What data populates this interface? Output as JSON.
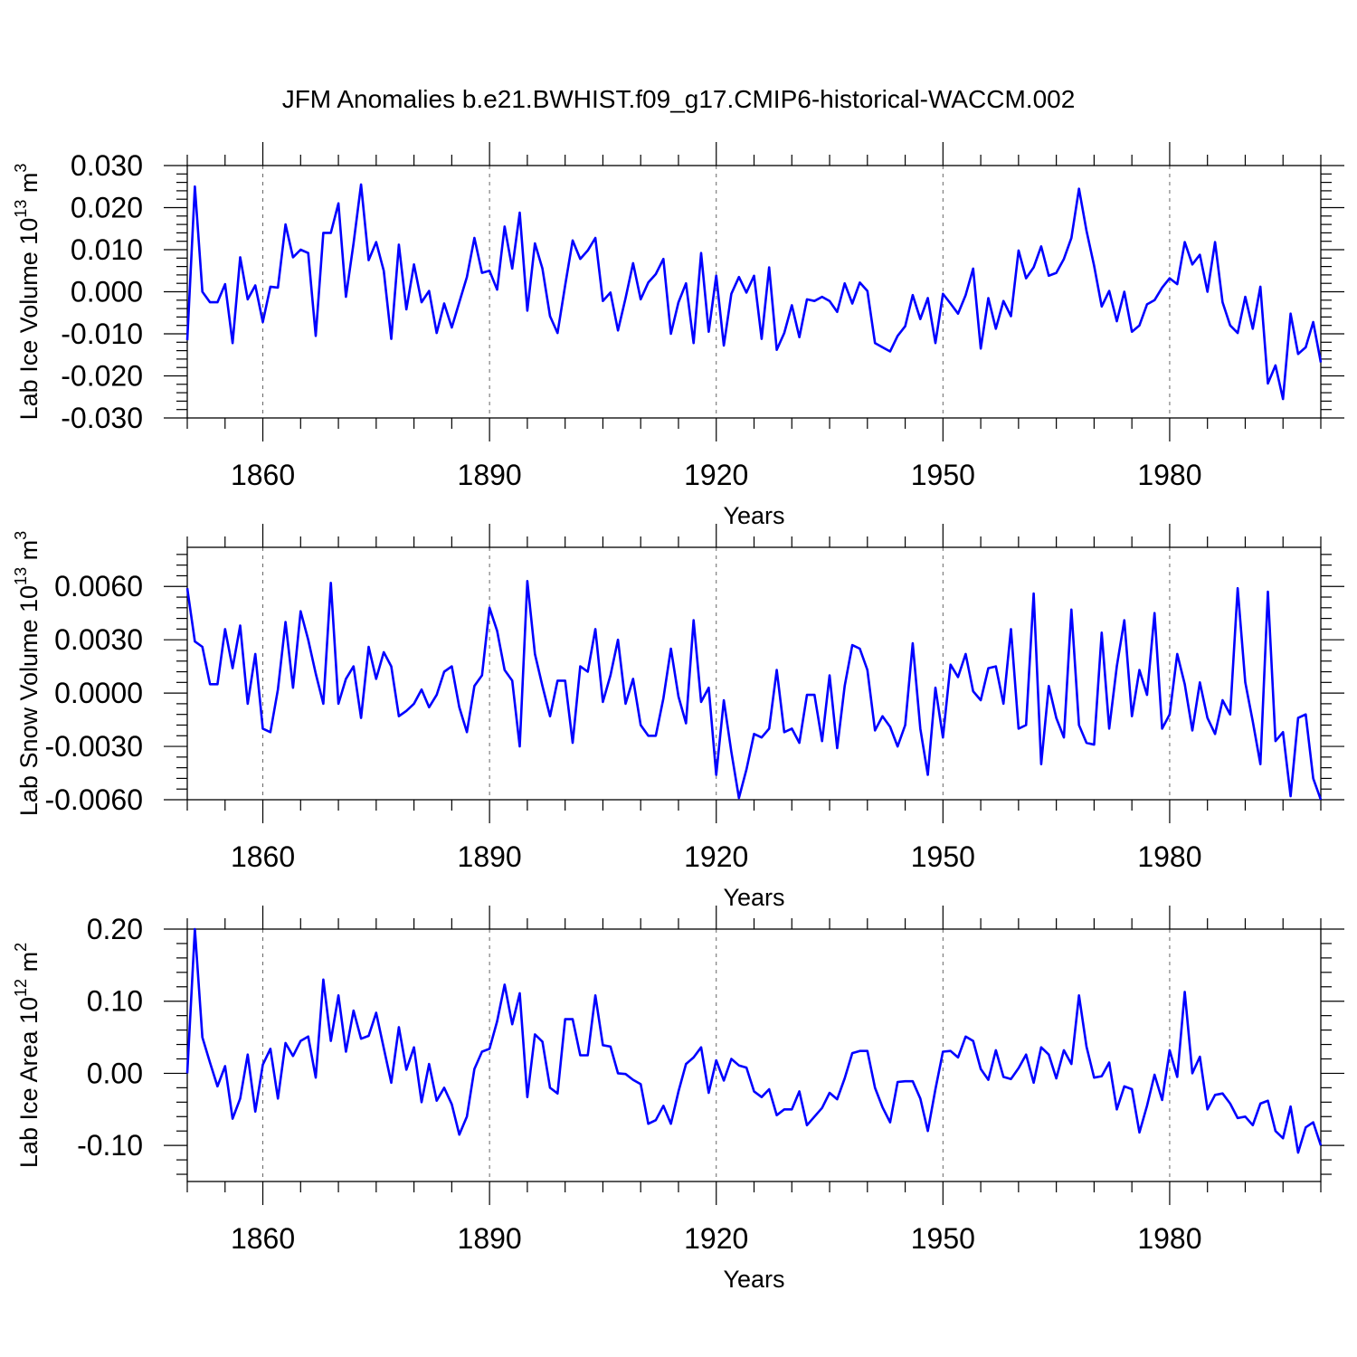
{
  "chart_data": {
    "title": "JFM Anomalies b.e21.BWHIST.f09_g17.CMIP6-historical-WACCM.002",
    "type": "line",
    "x_start": 1850,
    "x_end": 2000,
    "xlim": [
      1850,
      2000
    ],
    "xticks": [
      1860,
      1890,
      1920,
      1950,
      1980
    ],
    "xtick_labels": [
      "1860",
      "1890",
      "1920",
      "1950",
      "1980"
    ],
    "xlabel": "Years",
    "line_color": "#0000ff",
    "panels": [
      {
        "ylabel_main": "Lab Ice Volume 10",
        "ylabel_exp": "13",
        "ylabel_unit": " m",
        "ylabel_unit_exp": "3",
        "ylim": [
          -0.03,
          0.03
        ],
        "yticks": [
          -0.03,
          -0.02,
          -0.01,
          0.0,
          0.01,
          0.02,
          0.03
        ],
        "ytick_labels": [
          "-0.030",
          "-0.020",
          "-0.010",
          "0.000",
          "0.010",
          "0.020",
          "0.030"
        ],
        "minor_step": 0.002,
        "values": [
          -0.0115,
          0.025,
          0.0,
          -0.0025,
          -0.0025,
          0.0018,
          -0.0122,
          0.0082,
          -0.0018,
          0.0015,
          -0.0072,
          0.0012,
          0.001,
          0.016,
          0.0082,
          0.01,
          0.0092,
          -0.0105,
          0.014,
          0.014,
          0.021,
          -0.0012,
          0.0115,
          0.0255,
          0.0075,
          0.0118,
          0.005,
          -0.0112,
          0.0112,
          -0.0042,
          0.0065,
          -0.0025,
          0.0002,
          -0.0098,
          -0.0028,
          -0.0085,
          -0.0025,
          0.0035,
          0.0128,
          0.0045,
          0.005,
          0.0005,
          0.0155,
          0.0055,
          0.0188,
          -0.0045,
          0.0115,
          0.0055,
          -0.0058,
          -0.0098,
          0.0015,
          0.0122,
          0.0078,
          0.0098,
          0.0128,
          -0.0022,
          -0.0002,
          -0.0092,
          -0.0015,
          0.0068,
          -0.0018,
          0.0022,
          0.0042,
          0.0078,
          -0.01,
          -0.0025,
          0.002,
          -0.0122,
          0.0092,
          -0.0095,
          0.0038,
          -0.0128,
          -0.0005,
          0.0035,
          -0.0002,
          0.0038,
          -0.0112,
          0.0058,
          -0.0138,
          -0.0098,
          -0.0032,
          -0.0108,
          -0.0018,
          -0.0022,
          -0.0012,
          -0.0022,
          -0.0048,
          0.002,
          -0.0028,
          0.0022,
          0.0002,
          -0.0122,
          -0.0132,
          -0.0142,
          -0.0105,
          -0.0082,
          -0.0008,
          -0.0065,
          -0.0015,
          -0.0122,
          -0.0005,
          -0.0028,
          -0.0052,
          -0.0008,
          0.0055,
          -0.0135,
          -0.0015,
          -0.0088,
          -0.0022,
          -0.0058,
          0.0098,
          0.0032,
          0.0058,
          0.0108,
          0.0038,
          0.0045,
          0.0078,
          0.0128,
          0.0245,
          0.0145,
          0.0062,
          -0.0035,
          0.0002,
          -0.007,
          0.0,
          -0.0095,
          -0.008,
          -0.003,
          -0.002,
          0.001,
          0.0032,
          0.0018,
          0.0118,
          0.0065,
          0.0088,
          0.0,
          0.0118,
          -0.0025,
          -0.008,
          -0.0098,
          -0.0012,
          -0.0088,
          0.0012,
          -0.0218,
          -0.0175,
          -0.0255,
          -0.0052,
          -0.0148,
          -0.0132,
          -0.0072,
          -0.0168
        ]
      },
      {
        "ylabel_main": "Lab Snow Volume 10",
        "ylabel_exp": "13",
        "ylabel_unit": " m",
        "ylabel_unit_exp": "3",
        "ylim": [
          -0.006,
          0.0082
        ],
        "yticks": [
          -0.006,
          -0.003,
          0.0,
          0.003,
          0.006
        ],
        "ytick_labels": [
          "-0.0060",
          "-0.0030",
          "0.0000",
          "0.0030",
          "0.0060"
        ],
        "minor_step": 0.0006,
        "values": [
          0.0059,
          0.0029,
          0.0026,
          0.0005,
          0.0005,
          0.0036,
          0.0014,
          0.0038,
          -0.0006,
          0.0022,
          -0.002,
          -0.0022,
          0.0002,
          0.004,
          0.0003,
          0.0046,
          0.003,
          0.0011,
          -0.0006,
          0.0062,
          -0.0006,
          0.0008,
          0.0015,
          -0.0014,
          0.0026,
          0.0008,
          0.0023,
          0.0015,
          -0.0013,
          -0.001,
          -0.0006,
          0.0002,
          -0.0008,
          -0.0001,
          0.0012,
          0.0015,
          -0.0008,
          -0.0022,
          0.0004,
          0.001,
          0.0048,
          0.0035,
          0.0013,
          0.0007,
          -0.003,
          0.0063,
          0.0022,
          0.0004,
          -0.0013,
          0.0007,
          0.0007,
          -0.0028,
          0.0015,
          0.0012,
          0.0036,
          -0.0005,
          0.001,
          0.003,
          -0.0006,
          0.0008,
          -0.0018,
          -0.0024,
          -0.0024,
          -0.0003,
          0.0025,
          -0.0002,
          -0.0017,
          0.0041,
          -0.0005,
          0.0003,
          -0.0046,
          -0.0004,
          -0.0033,
          -0.0059,
          -0.0043,
          -0.0023,
          -0.0025,
          -0.002,
          0.0013,
          -0.0022,
          -0.002,
          -0.0028,
          -0.0001,
          -0.0001,
          -0.0027,
          0.001,
          -0.0031,
          0.0004,
          0.0027,
          0.0025,
          0.0013,
          -0.0021,
          -0.0013,
          -0.0019,
          -0.003,
          -0.0018,
          0.0028,
          -0.002,
          -0.0046,
          0.0003,
          -0.0025,
          0.0016,
          0.0009,
          0.0022,
          0.0001,
          -0.0004,
          0.0014,
          0.0015,
          -0.0006,
          0.0036,
          -0.002,
          -0.0018,
          0.0056,
          -0.004,
          0.0004,
          -0.0014,
          -0.0025,
          0.0047,
          -0.0018,
          -0.0028,
          -0.0029,
          0.0034,
          -0.002,
          0.0015,
          0.0041,
          -0.0013,
          0.0013,
          -0.0001,
          0.0045,
          -0.002,
          -0.0012,
          0.0022,
          0.0005,
          -0.0021,
          0.0006,
          -0.0014,
          -0.0023,
          -0.0004,
          -0.0012,
          0.0059,
          0.0006,
          -0.0016,
          -0.004,
          0.0057,
          -0.0027,
          -0.0022,
          -0.0058,
          -0.0014,
          -0.0012,
          -0.0048,
          -0.006
        ]
      },
      {
        "ylabel_main": "Lab Ice Area 10",
        "ylabel_exp": "12",
        "ylabel_unit": " m",
        "ylabel_unit_exp": "2",
        "ylim": [
          -0.15,
          0.2
        ],
        "yticks": [
          -0.1,
          0.0,
          0.1,
          0.2
        ],
        "ytick_labels": [
          "-0.10",
          "0.00",
          "0.10",
          "0.20"
        ],
        "minor_step": 0.02,
        "values": [
          0.0,
          0.2,
          0.05,
          0.015,
          -0.018,
          0.01,
          -0.063,
          -0.035,
          0.026,
          -0.053,
          0.012,
          0.034,
          -0.035,
          0.042,
          0.024,
          0.045,
          0.051,
          -0.006,
          0.13,
          0.045,
          0.108,
          0.03,
          0.087,
          0.048,
          0.052,
          0.084,
          0.035,
          -0.013,
          0.064,
          0.005,
          0.036,
          -0.04,
          0.013,
          -0.038,
          -0.02,
          -0.043,
          -0.085,
          -0.06,
          0.006,
          0.03,
          0.034,
          0.072,
          0.123,
          0.068,
          0.111,
          -0.033,
          0.054,
          0.044,
          -0.02,
          -0.028,
          0.075,
          0.075,
          0.025,
          0.025,
          0.108,
          0.039,
          0.037,
          0.0,
          -0.001,
          -0.009,
          -0.015,
          -0.07,
          -0.065,
          -0.045,
          -0.07,
          -0.025,
          0.013,
          0.022,
          0.036,
          -0.027,
          0.018,
          -0.01,
          0.02,
          0.011,
          0.008,
          -0.025,
          -0.033,
          -0.022,
          -0.058,
          -0.05,
          -0.05,
          -0.025,
          -0.072,
          -0.06,
          -0.048,
          -0.027,
          -0.036,
          -0.007,
          0.028,
          0.031,
          0.031,
          -0.02,
          -0.047,
          -0.068,
          -0.012,
          -0.011,
          -0.011,
          -0.035,
          -0.08,
          -0.022,
          0.03,
          0.031,
          0.022,
          0.051,
          0.045,
          0.006,
          -0.009,
          0.032,
          -0.005,
          -0.008,
          0.007,
          0.026,
          -0.013,
          0.036,
          0.026,
          -0.007,
          0.032,
          0.013,
          0.108,
          0.037,
          -0.006,
          -0.004,
          0.015,
          -0.05,
          -0.018,
          -0.022,
          -0.082,
          -0.045,
          -0.002,
          -0.037,
          0.032,
          -0.005,
          0.113,
          0.0,
          0.023,
          -0.05,
          -0.03,
          -0.028,
          -0.042,
          -0.062,
          -0.06,
          -0.072,
          -0.042,
          -0.038,
          -0.08,
          -0.09,
          -0.046,
          -0.11,
          -0.075,
          -0.068,
          -0.1
        ]
      }
    ]
  }
}
